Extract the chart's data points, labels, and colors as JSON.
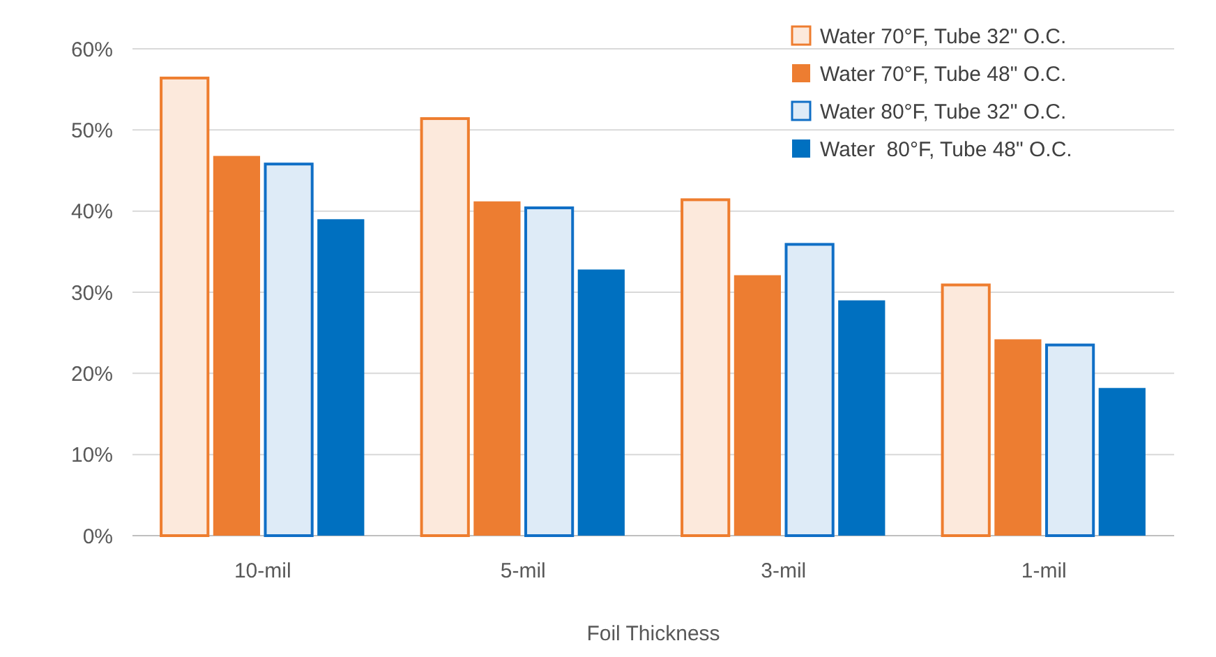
{
  "chart_data": {
    "type": "bar",
    "xlabel": "Foil Thickness",
    "categories": [
      "10-mil",
      "5-mil",
      "3-mil",
      "1-mil"
    ],
    "ylim": [
      0,
      60
    ],
    "yticks": [
      {
        "value": 0,
        "label": "0%"
      },
      {
        "value": 10,
        "label": "10%"
      },
      {
        "value": 20,
        "label": "20%"
      },
      {
        "value": 30,
        "label": "30%"
      },
      {
        "value": 40,
        "label": "40%"
      },
      {
        "value": 50,
        "label": "50%"
      },
      {
        "value": 60,
        "label": "60%"
      }
    ],
    "grid": "y",
    "legend": "top right",
    "series": [
      {
        "name": "Water 70°F, Tube 32\" O.C.",
        "color": "#fce9dc",
        "values": [
          56.4,
          51.4,
          41.4,
          30.9
        ]
      },
      {
        "name": "Water 70°F, Tube 48\" O.C.",
        "color": "#ed7d31",
        "values": [
          46.8,
          41.2,
          32.1,
          24.2
        ]
      },
      {
        "name": "Water 80°F, Tube 32\" O.C.",
        "color": "#deebf7",
        "values": [
          45.8,
          40.4,
          35.9,
          23.5
        ]
      },
      {
        "name": "Water  80°F, Tube 48\" O.C.",
        "color": "#0070c0",
        "values": [
          39.0,
          32.8,
          29.0,
          18.2
        ]
      }
    ]
  }
}
